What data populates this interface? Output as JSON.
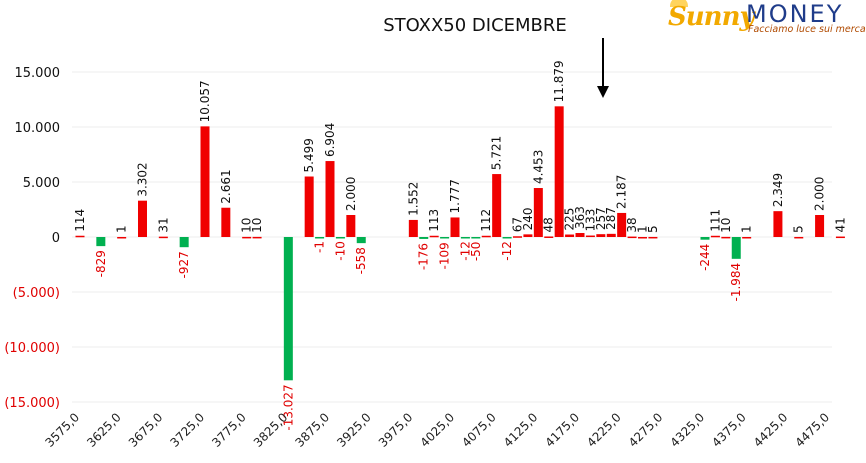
{
  "logo": {
    "brand_first": "Sunny",
    "brand_second": "MONEY",
    "tagline": "Facciamo luce sui mercati"
  },
  "colors": {
    "positive_bar": "#f00000",
    "negative_bar": "#00b050",
    "negative_label": "#e00000",
    "positive_label": "#111111",
    "grid": "#ececec"
  },
  "chart_data": {
    "type": "bar",
    "title": "STOXX50 DICEMBRE",
    "xlabel": "",
    "ylabel": "",
    "ylim": [
      -15000,
      18000
    ],
    "yticks": [
      15000,
      10000,
      5000,
      0,
      -5000,
      -10000,
      -15000
    ],
    "ytick_labels": [
      "15.000",
      "10.000",
      "5.000",
      "0",
      "(5.000)",
      "(10.000)",
      "(15.000)"
    ],
    "x_tick_labels": [
      "3575,0",
      "3625,0",
      "3675,0",
      "3725,0",
      "3775,0",
      "3825,0",
      "3875,0",
      "3925,0",
      "3975,0",
      "4025,0",
      "4075,0",
      "4125,0",
      "4175,0",
      "4225,0",
      "4275,0",
      "4325,0",
      "4375,0",
      "4425,0",
      "4475,0"
    ],
    "grid": true,
    "legend": "none",
    "marker": {
      "type": "arrow-down",
      "at_strike": 4225
    },
    "series": [
      {
        "values": [
          [
            3575,
            114,
            "114"
          ],
          [
            3600,
            -829,
            "-829"
          ],
          [
            3625,
            1,
            "1"
          ],
          [
            3650,
            3302,
            "3.302"
          ],
          [
            3675,
            31,
            "31"
          ],
          [
            3700,
            -927,
            "-927"
          ],
          [
            3725,
            10057,
            "10.057"
          ],
          [
            3750,
            2661,
            "2.661"
          ],
          [
            3775,
            10,
            "10"
          ],
          [
            3787.5,
            10,
            "10"
          ],
          [
            3825,
            -13027,
            "-13.027"
          ],
          [
            3850,
            5499,
            "5.499"
          ],
          [
            3862.5,
            -1,
            "-1"
          ],
          [
            3875,
            6904,
            "6.904"
          ],
          [
            3887.5,
            -10,
            "-10"
          ],
          [
            3900,
            2000,
            "2.000"
          ],
          [
            3912.5,
            -558,
            "-558"
          ],
          [
            3975,
            1552,
            "1.552"
          ],
          [
            3987.5,
            -176,
            "-176"
          ],
          [
            4000,
            113,
            "113"
          ],
          [
            4012.5,
            -109,
            "-109"
          ],
          [
            4025,
            1777,
            "1.777"
          ],
          [
            4037.5,
            -12,
            "-12"
          ],
          [
            4050,
            -50,
            "-50"
          ],
          [
            4062.5,
            112,
            "112"
          ],
          [
            4075,
            5721,
            "5.721"
          ],
          [
            4087.5,
            -12,
            "-12"
          ],
          [
            4100,
            67,
            "67"
          ],
          [
            4112.5,
            240,
            "240"
          ],
          [
            4125,
            4453,
            "4.453"
          ],
          [
            4137.5,
            48,
            "48"
          ],
          [
            4150,
            11879,
            "11.879"
          ],
          [
            4162.5,
            225,
            "225"
          ],
          [
            4175,
            363,
            "363"
          ],
          [
            4187.5,
            133,
            "133"
          ],
          [
            4200,
            257,
            "257"
          ],
          [
            4212.5,
            287,
            "287"
          ],
          [
            4225,
            2187,
            "2.187"
          ],
          [
            4237.5,
            38,
            "38"
          ],
          [
            4250,
            1,
            "1"
          ],
          [
            4262.5,
            5,
            "5"
          ],
          [
            4325,
            -244,
            "-244"
          ],
          [
            4337.5,
            111,
            "111"
          ],
          [
            4350,
            10,
            "10"
          ],
          [
            4362.5,
            -1984,
            "-1.984"
          ],
          [
            4375,
            1,
            "1"
          ],
          [
            4412.5,
            2349,
            "2.349"
          ],
          [
            4437.5,
            5,
            "5"
          ],
          [
            4462.5,
            2000,
            "2.000"
          ],
          [
            4487.5,
            41,
            "41"
          ]
        ]
      }
    ]
  }
}
